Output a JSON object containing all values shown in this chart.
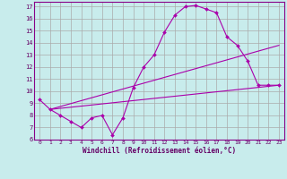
{
  "xlabel": "Windchill (Refroidissement éolien,°C)",
  "bg_color": "#c8ecec",
  "line_color": "#aa00aa",
  "grid_color": "#aaaaaa",
  "xlim": [
    -0.5,
    23.5
  ],
  "ylim": [
    6,
    17.4
  ],
  "xticks": [
    0,
    1,
    2,
    3,
    4,
    5,
    6,
    7,
    8,
    9,
    10,
    11,
    12,
    13,
    14,
    15,
    16,
    17,
    18,
    19,
    20,
    21,
    22,
    23
  ],
  "yticks": [
    6,
    7,
    8,
    9,
    10,
    11,
    12,
    13,
    14,
    15,
    16,
    17
  ],
  "curve1_x": [
    0,
    1,
    2,
    3,
    4,
    5,
    6,
    7,
    8,
    9,
    10,
    11,
    12,
    13,
    14,
    15,
    16,
    17,
    18,
    19,
    20,
    21,
    22,
    23
  ],
  "curve1_y": [
    9.3,
    8.5,
    8.0,
    7.5,
    7.0,
    7.8,
    8.0,
    6.4,
    7.8,
    10.3,
    12.0,
    13.0,
    14.9,
    16.3,
    17.0,
    17.1,
    16.8,
    16.5,
    14.5,
    13.8,
    12.5,
    10.5,
    10.5,
    10.5
  ],
  "line1_x": [
    1,
    23
  ],
  "line1_y": [
    8.5,
    13.8
  ],
  "line2_x": [
    1,
    23
  ],
  "line2_y": [
    8.5,
    10.5
  ]
}
